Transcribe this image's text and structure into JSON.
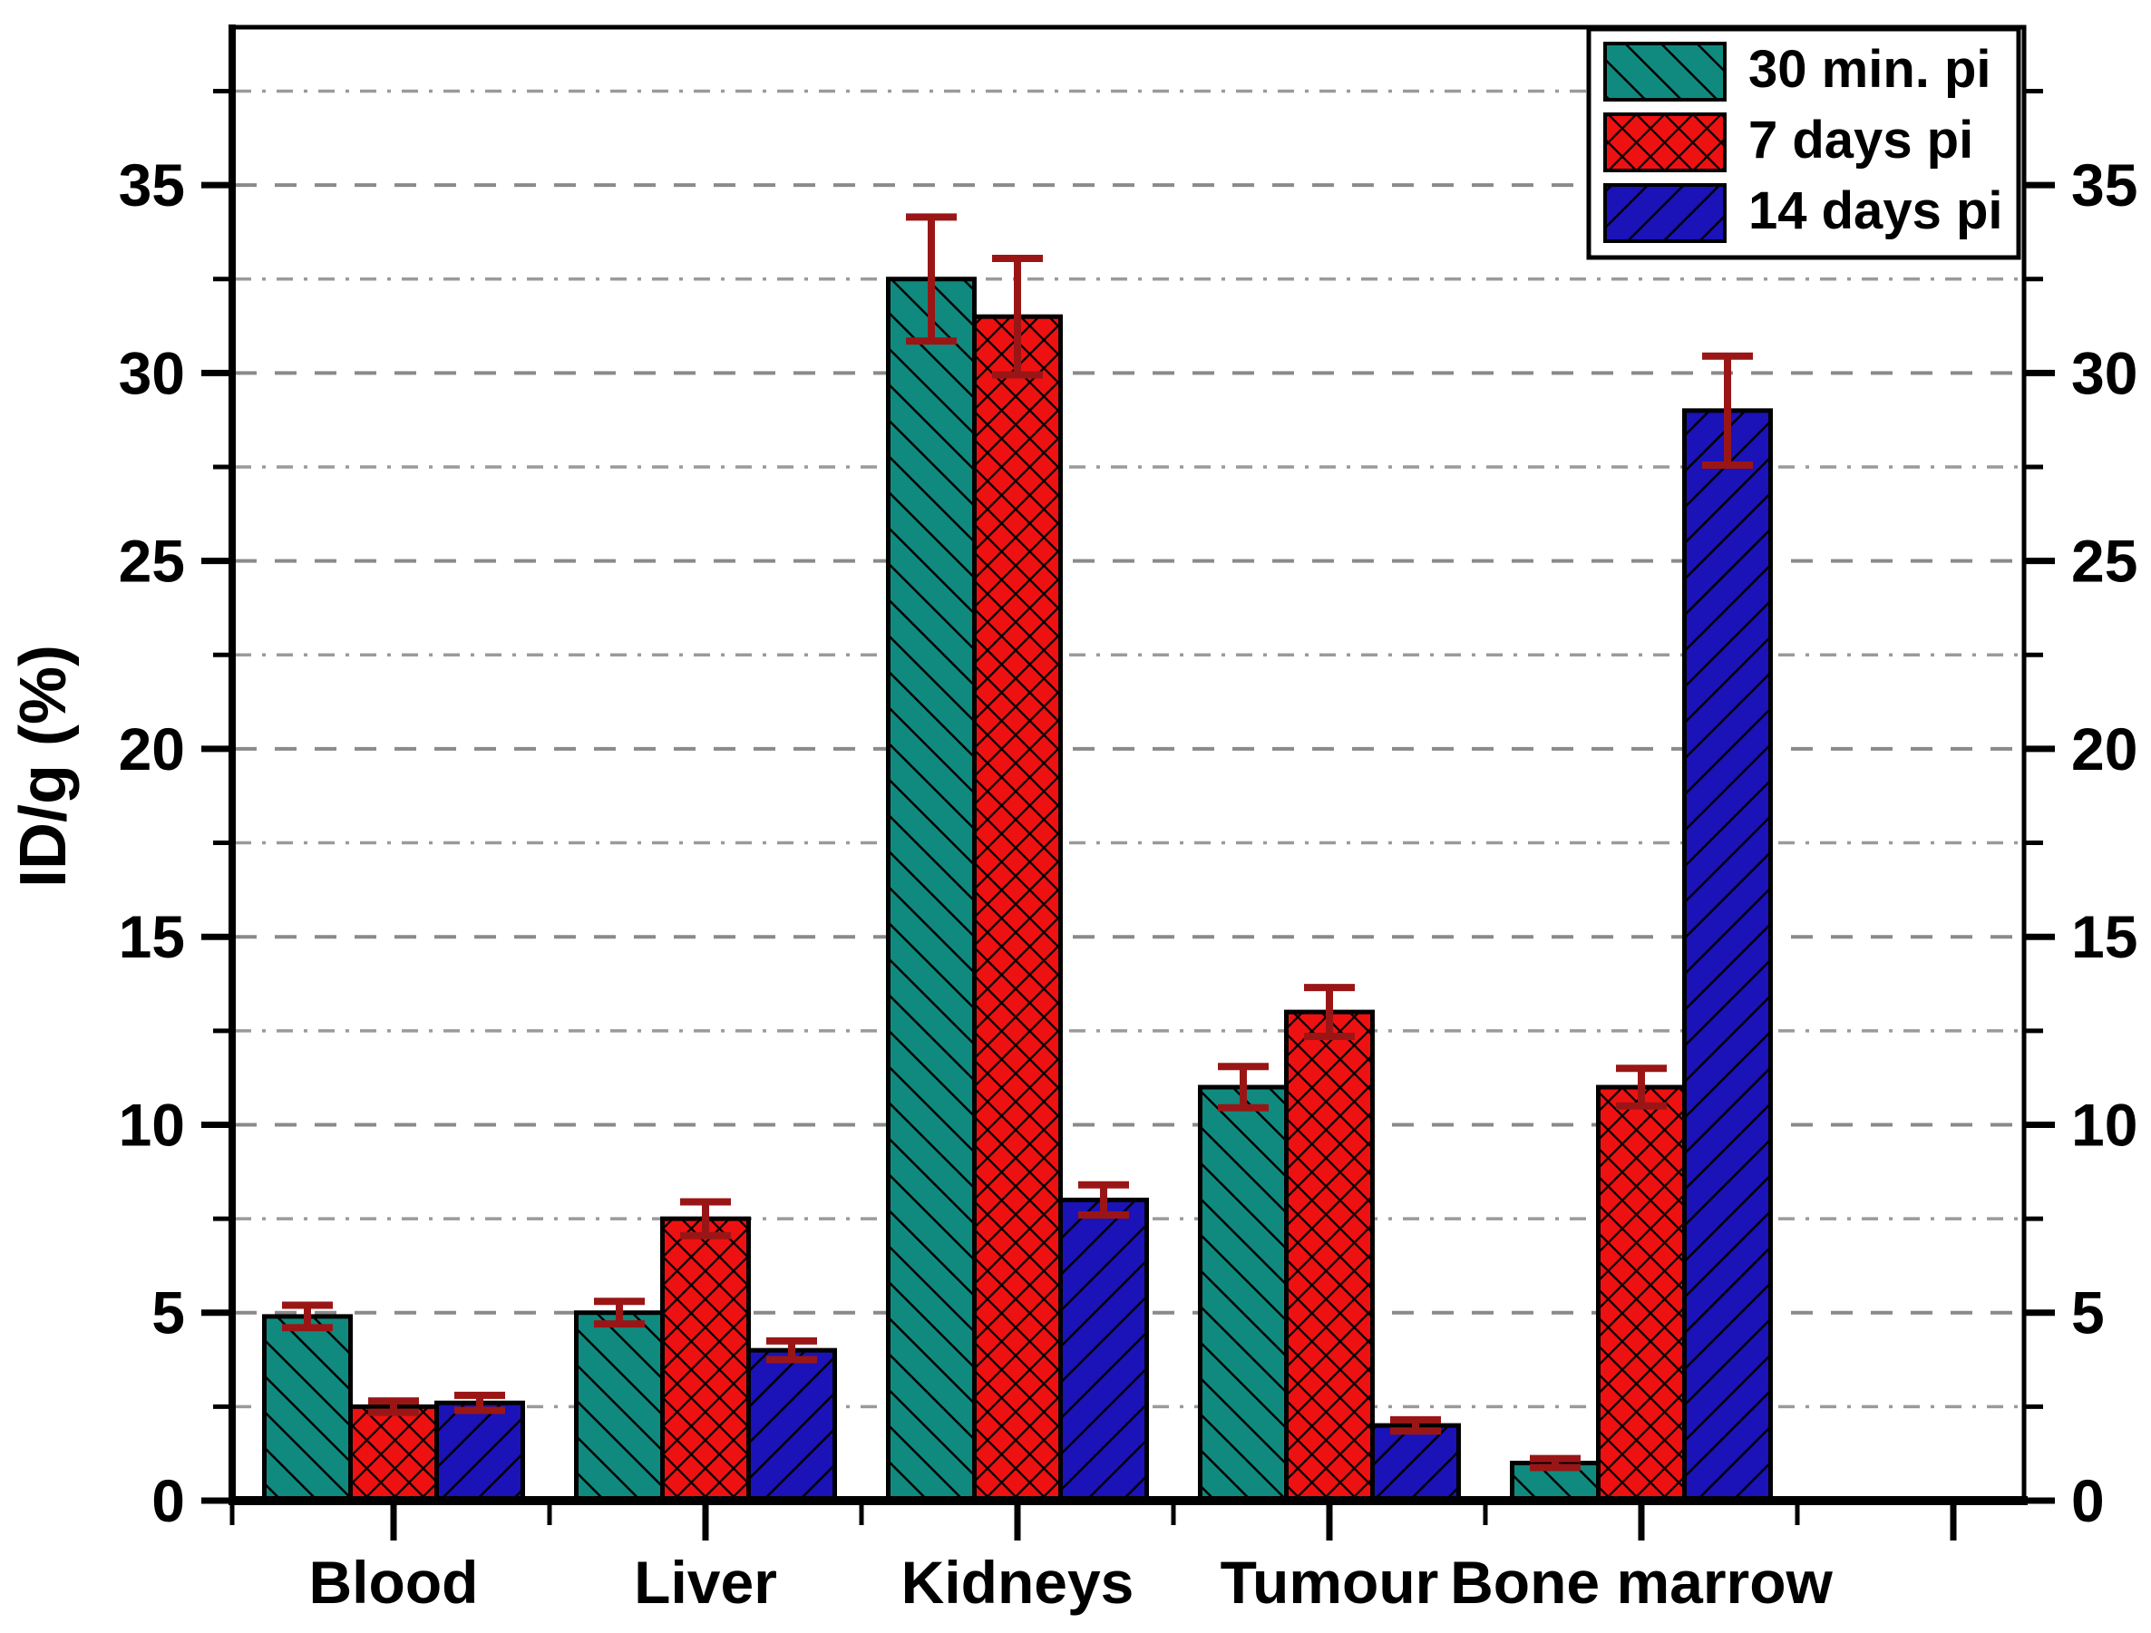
{
  "chart_data": {
    "type": "bar",
    "title": "",
    "xlabel": "",
    "ylabel": "ID/g (%)",
    "categories": [
      "Blood",
      "Liver",
      "Kidneys",
      "Tumour",
      "Bone marrow"
    ],
    "series": [
      {
        "name": "30 min. pi",
        "color": "#108a7e",
        "hatch": "forward-diagonal",
        "values": [
          4.9,
          5.0,
          32.5,
          11.0,
          1.0
        ],
        "errors": [
          0.3,
          0.3,
          1.65,
          0.55,
          0.12
        ]
      },
      {
        "name": "7 days pi",
        "color": "#ee1111",
        "hatch": "diagonal-crosshatch",
        "values": [
          2.5,
          7.5,
          31.5,
          13.0,
          11.0
        ],
        "errors": [
          0.15,
          0.45,
          1.55,
          0.65,
          0.5
        ]
      },
      {
        "name": "14 days pi",
        "color": "#1b12b8",
        "hatch": "backward-diagonal",
        "values": [
          2.6,
          4.0,
          8.0,
          2.0,
          29.0
        ],
        "errors": [
          0.2,
          0.25,
          0.4,
          0.15,
          1.45
        ]
      }
    ],
    "y_axis": {
      "min": 0,
      "max": 39.2,
      "major_tick_step": 5,
      "minor_tick_step": 2.5,
      "tick_labels": [
        "0",
        "5",
        "10",
        "15",
        "20",
        "25",
        "30",
        "35"
      ],
      "mirrored_right_axis": true
    },
    "grid": {
      "shown": true,
      "major_style": "dashed",
      "minor_style": "dash-dot",
      "major_color": "#8a8a8a",
      "minor_color": "#9a9a9a"
    },
    "error_bar_color": "#9a1616",
    "legend_position": "top-right",
    "legend_entries": [
      "30 min. pi",
      "7 days pi",
      "14 days pi"
    ]
  }
}
